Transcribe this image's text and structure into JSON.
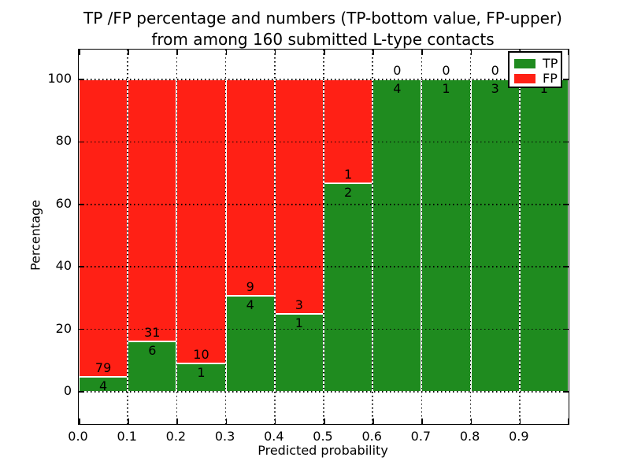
{
  "chart_data": {
    "type": "bar",
    "variant": "stacked-percentage-histogram",
    "title": "TP /FP percentage and numbers (TP-bottom value, FP-upper)\nfrom among 160 submitted L-type contacts",
    "xlabel": "Predicted probability",
    "ylabel": "Percentage",
    "x_tick_labels": [
      "0.0",
      "0.1",
      "0.2",
      "0.3",
      "0.4",
      "0.5",
      "0.6",
      "0.7",
      "0.8",
      "0.9"
    ],
    "y_ticks": [
      0,
      20,
      40,
      60,
      80,
      100
    ],
    "xlim": [
      0.0,
      1.0
    ],
    "ylim": [
      -10.3,
      109.6
    ],
    "bin_width": 0.1,
    "grid": "dotted both axes",
    "legend_position": "upper right",
    "total_contacts": 160,
    "bins": [
      {
        "x0": 0.0,
        "tp": 4,
        "fp": 79
      },
      {
        "x0": 0.1,
        "tp": 6,
        "fp": 31
      },
      {
        "x0": 0.2,
        "tp": 1,
        "fp": 10
      },
      {
        "x0": 0.3,
        "tp": 4,
        "fp": 9
      },
      {
        "x0": 0.4,
        "tp": 1,
        "fp": 3
      },
      {
        "x0": 0.5,
        "tp": 2,
        "fp": 1
      },
      {
        "x0": 0.6,
        "tp": 4,
        "fp": 0
      },
      {
        "x0": 0.7,
        "tp": 1,
        "fp": 0
      },
      {
        "x0": 0.8,
        "tp": 3,
        "fp": 0
      },
      {
        "x0": 0.9,
        "tp": 1,
        "fp": 0
      }
    ],
    "legend": [
      {
        "label": "TP",
        "color": "#1f8b1f"
      },
      {
        "label": "FP",
        "color": "#ff2015"
      }
    ],
    "colors": {
      "tp": "#1f8b1f",
      "fp": "#ff2015",
      "frame": "#000000",
      "background": "#ffffff"
    }
  }
}
